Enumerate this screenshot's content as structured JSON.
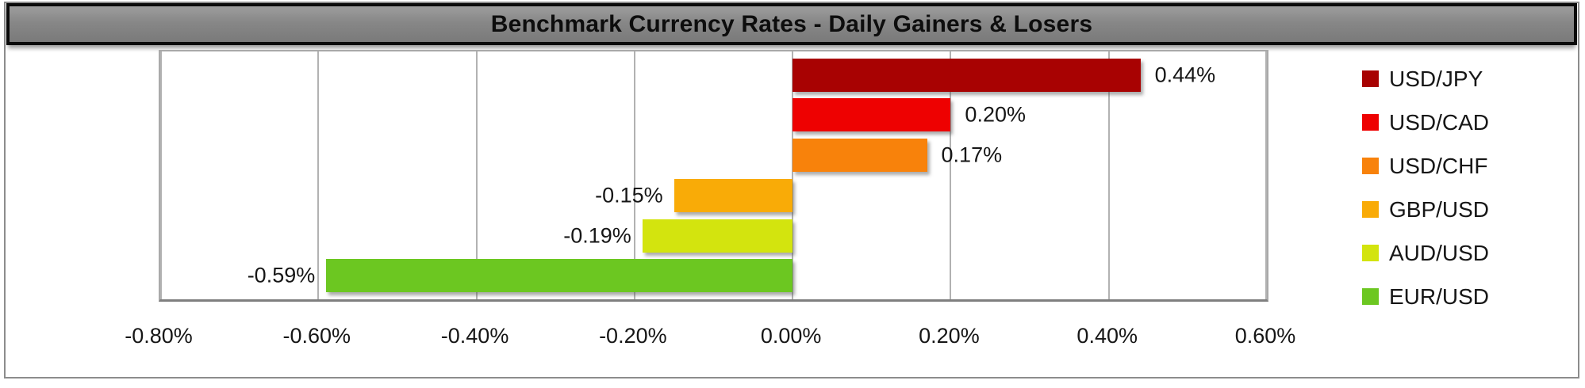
{
  "chart_data": {
    "type": "bar",
    "orientation": "horizontal",
    "title": "Benchmark Currency Rates - Daily Gainers & Losers",
    "categories": [
      "USD/JPY",
      "USD/CAD",
      "USD/CHF",
      "GBP/USD",
      "AUD/USD",
      "EUR/USD"
    ],
    "values": [
      0.44,
      0.2,
      0.17,
      -0.15,
      -0.19,
      -0.59
    ],
    "value_labels": [
      "0.44%",
      "0.20%",
      "0.17%",
      "-0.15%",
      "-0.19%",
      "-0.59%"
    ],
    "bar_colors": [
      "#a80202",
      "#ee0101",
      "#f8820b",
      "#f9ab07",
      "#d3e40e",
      "#6cc721"
    ],
    "xlabel": "",
    "ylabel": "",
    "xlim": [
      -0.8,
      0.6
    ],
    "x_tick_step": 0.2,
    "x_tick_labels": [
      "-0.80%",
      "-0.60%",
      "-0.40%",
      "-0.20%",
      "0.00%",
      "0.20%",
      "0.40%",
      "0.60%"
    ],
    "grid": "vertical-gridlines-on",
    "data_label_position": "outside-end",
    "legend_position": "right",
    "legend": [
      {
        "label": "USD/JPY",
        "color": "#a80202"
      },
      {
        "label": "USD/CAD",
        "color": "#ee0101"
      },
      {
        "label": "USD/CHF",
        "color": "#f8820b"
      },
      {
        "label": "GBP/USD",
        "color": "#f9ab07"
      },
      {
        "label": "AUD/USD",
        "color": "#d3e40e"
      },
      {
        "label": "EUR/USD",
        "color": "#6cc721"
      }
    ]
  },
  "colors": {
    "title_bar_fill": "#878787",
    "title_border": "#0a0a0a",
    "frame_border": "#8c8c8c",
    "plot_border": "#a9a9a9",
    "gridline": "#b2b2b2",
    "axis_line": "#7f7f7f",
    "label_text": "#161616"
  }
}
